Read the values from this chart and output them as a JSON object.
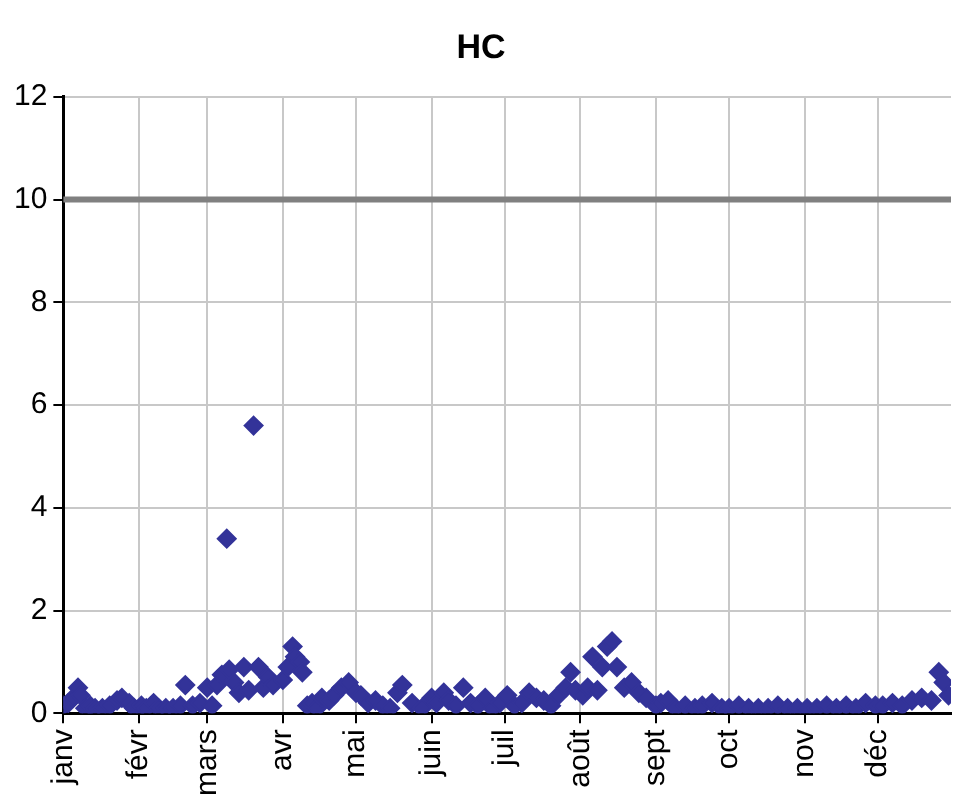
{
  "chart_data": {
    "type": "scatter",
    "title": "HC",
    "x": [
      "--01-01",
      "--01-03",
      "--01-05",
      "--01-07",
      "--01-08",
      "--01-10",
      "--01-12",
      "--01-14",
      "--01-17",
      "--01-20",
      "--01-23",
      "--01-25",
      "--01-28",
      "--01-30",
      "--02-02",
      "--02-04",
      "--02-07",
      "--02-09",
      "--02-12",
      "--02-15",
      "--02-18",
      "--02-20",
      "--02-23",
      "--02-26",
      "--03-01",
      "--03-03",
      "--03-05",
      "--03-07",
      "--03-09",
      "--03-10",
      "--03-12",
      "--03-14",
      "--03-16",
      "--03-18",
      "--03-20",
      "--03-22",
      "--03-24",
      "--03-26",
      "--03-28",
      "--04-01",
      "--04-03",
      "--04-05",
      "--04-06",
      "--04-08",
      "--04-09",
      "--04-11",
      "--04-13",
      "--04-15",
      "--04-17",
      "--04-20",
      "--04-22",
      "--04-25",
      "--04-28",
      "--05-01",
      "--05-03",
      "--05-06",
      "--05-09",
      "--05-12",
      "--05-15",
      "--05-18",
      "--05-20",
      "--05-24",
      "--05-28",
      "--06-01",
      "--06-03",
      "--06-06",
      "--06-08",
      "--06-11",
      "--06-14",
      "--06-17",
      "--06-20",
      "--06-23",
      "--06-26",
      "--06-29",
      "--07-02",
      "--07-05",
      "--07-08",
      "--07-11",
      "--07-14",
      "--07-17",
      "--07-20",
      "--07-23",
      "--07-26",
      "--07-28",
      "--07-30",
      "--08-02",
      "--08-04",
      "--08-06",
      "--08-08",
      "--08-10",
      "--08-12",
      "--08-14",
      "--08-16",
      "--08-19",
      "--08-22",
      "--08-25",
      "--08-28",
      "--09-01",
      "--09-03",
      "--09-06",
      "--09-09",
      "--09-13",
      "--09-17",
      "--09-20",
      "--09-24",
      "--09-28",
      "--10-01",
      "--10-05",
      "--10-09",
      "--10-13",
      "--10-17",
      "--10-21",
      "--10-25",
      "--10-29",
      "--11-02",
      "--11-06",
      "--11-10",
      "--11-14",
      "--11-18",
      "--11-22",
      "--11-26",
      "--11-30",
      "--12-03",
      "--12-07",
      "--12-11",
      "--12-15",
      "--12-19",
      "--12-23",
      "--12-26",
      "--12-28",
      "--12-30"
    ],
    "series": [
      {
        "color": "#333399",
        "values": [
          0.15,
          0.2,
          0.3,
          0.5,
          0.35,
          0.1,
          0.15,
          0.1,
          0.1,
          0.15,
          0.25,
          0.3,
          0.2,
          0.1,
          0.15,
          0.1,
          0.2,
          0.1,
          0.1,
          0.1,
          0.15,
          0.55,
          0.15,
          0.2,
          0.5,
          0.15,
          0.55,
          0.75,
          3.4,
          0.85,
          0.6,
          0.4,
          0.9,
          0.45,
          5.6,
          0.9,
          0.5,
          0.7,
          0.55,
          0.65,
          0.9,
          1.3,
          1.1,
          1.0,
          0.8,
          0.15,
          0.2,
          0.1,
          0.3,
          0.25,
          0.35,
          0.5,
          0.6,
          0.4,
          0.35,
          0.2,
          0.25,
          0.15,
          0.1,
          0.4,
          0.55,
          0.2,
          0.1,
          0.3,
          0.2,
          0.4,
          0.25,
          0.15,
          0.5,
          0.2,
          0.15,
          0.3,
          0.1,
          0.2,
          0.35,
          0.15,
          0.2,
          0.4,
          0.3,
          0.25,
          0.15,
          0.35,
          0.5,
          0.8,
          0.45,
          0.35,
          0.5,
          1.1,
          0.45,
          0.9,
          1.3,
          1.4,
          0.9,
          0.5,
          0.6,
          0.4,
          0.3,
          0.15,
          0.2,
          0.25,
          0.1,
          0.15,
          0.1,
          0.15,
          0.2,
          0.1,
          0.1,
          0.15,
          0.1,
          0.1,
          0.1,
          0.15,
          0.1,
          0.1,
          0.1,
          0.1,
          0.15,
          0.1,
          0.15,
          0.1,
          0.2,
          0.15,
          0.15,
          0.2,
          0.15,
          0.25,
          0.3,
          0.25,
          0.8,
          0.6,
          0.35
        ]
      }
    ],
    "marker": "diamond",
    "xlim": [
      "--01-01",
      "--12-31"
    ],
    "xticks": [
      {
        "value": "--01-01",
        "label": "janv"
      },
      {
        "value": "--02-01",
        "label": "févr"
      },
      {
        "value": "--03-01",
        "label": "mars"
      },
      {
        "value": "--04-01",
        "label": "avr"
      },
      {
        "value": "--05-01",
        "label": "mai"
      },
      {
        "value": "--06-01",
        "label": "juin"
      },
      {
        "value": "--07-01",
        "label": "juil"
      },
      {
        "value": "--08-01",
        "label": "août"
      },
      {
        "value": "--09-01",
        "label": "sept"
      },
      {
        "value": "--10-01",
        "label": "oct"
      },
      {
        "value": "--11-01",
        "label": "nov"
      },
      {
        "value": "--12-01",
        "label": "déc"
      }
    ],
    "ylim": [
      0,
      12
    ],
    "yticks": [
      0,
      2,
      4,
      6,
      8,
      10,
      12
    ],
    "grid": true,
    "ref_lines": [
      {
        "axis": "y",
        "value": 10,
        "color": "#808080"
      }
    ]
  }
}
